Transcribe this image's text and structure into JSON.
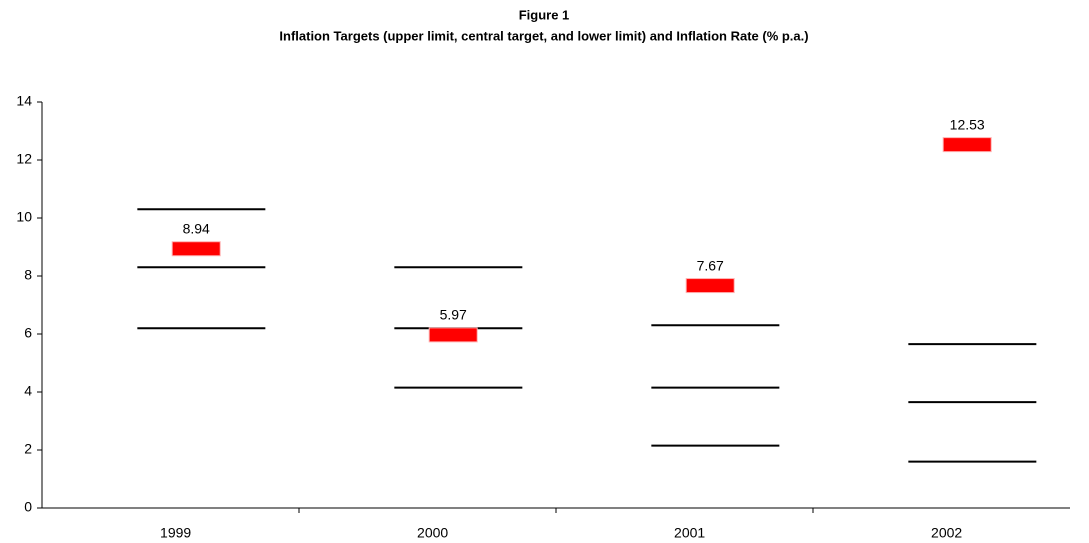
{
  "chart_data": {
    "type": "target-range",
    "title": "Figure 1",
    "subtitle": "Inflation Targets (upper limit, central target, and lower limit) and Inflation Rate (% p.a.)",
    "categories": [
      "1999",
      "2000",
      "2001",
      "2002"
    ],
    "series": [
      {
        "kind": "line",
        "color": "#000000",
        "values": [
          10.3,
          8.3,
          6.3,
          5.65
        ]
      },
      {
        "kind": "line",
        "color": "#000000",
        "values": [
          8.3,
          6.2,
          4.15,
          3.65
        ]
      },
      {
        "kind": "line",
        "color": "#000000",
        "values": [
          6.2,
          4.15,
          2.15,
          1.6
        ]
      },
      {
        "kind": "bar",
        "color": "#ff0000",
        "values": [
          8.94,
          5.97,
          7.67,
          12.53
        ]
      }
    ],
    "ylim": [
      0,
      14
    ],
    "yticks": [
      0,
      2,
      4,
      6,
      8,
      10,
      12,
      14
    ],
    "grid": false
  }
}
